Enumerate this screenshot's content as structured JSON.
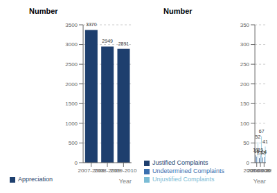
{
  "chart_data": [
    {
      "type": "bar",
      "title": "Number",
      "xlabel": "Year",
      "categories": [
        "2007-2008",
        "2008-2009",
        "2009-2010"
      ],
      "series": [
        {
          "name": "Appreciation",
          "color": "#1e3f6e",
          "values": [
            3370,
            2949,
            2891
          ]
        }
      ],
      "ylim": [
        0,
        3500
      ],
      "yticks": [
        0,
        500,
        1000,
        1500,
        2000,
        2500,
        3000,
        3500
      ],
      "grid": true,
      "data_labels": true,
      "legend": "bottom"
    },
    {
      "type": "bar",
      "title": "Number",
      "xlabel": "Year",
      "categories": [
        "2007-2008",
        "2008-2009",
        "2009-2010"
      ],
      "series": [
        {
          "name": "Justified Complaints",
          "color": "#1e3f6e",
          "values": [
            19,
            12,
            13
          ]
        },
        {
          "name": "Undetermined Complaints",
          "color": "#3a6faf",
          "values": [
            15,
            19,
            14
          ]
        },
        {
          "name": "Unjustified Complaints",
          "color": "#7bbcd5",
          "values": [
            52,
            67,
            41
          ]
        }
      ],
      "ylim": [
        0,
        350
      ],
      "yticks": [
        0,
        50,
        100,
        150,
        200,
        250,
        300,
        350
      ],
      "grid": true,
      "data_labels": true,
      "legend": "bottom"
    }
  ]
}
